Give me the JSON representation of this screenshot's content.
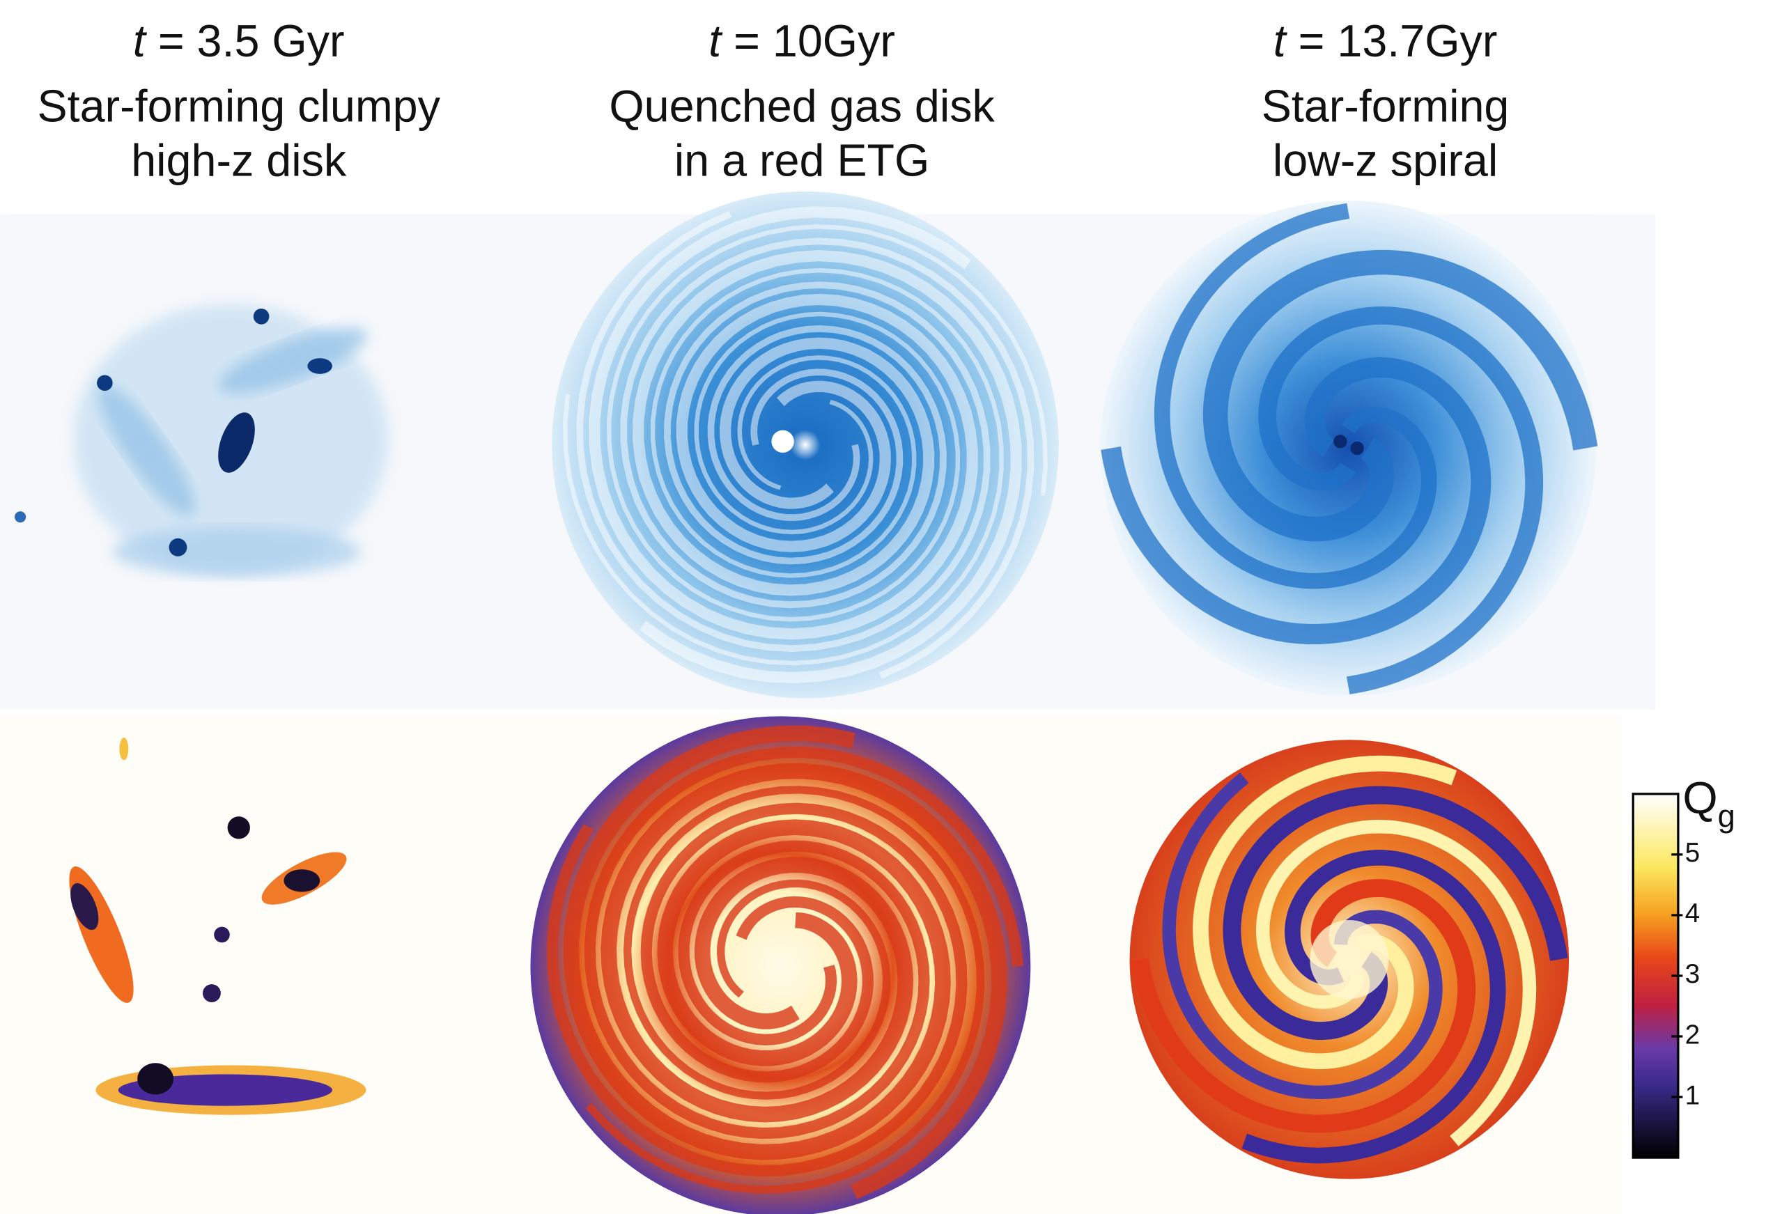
{
  "panels": [
    {
      "time_symbol": "t",
      "time_text": "= 3.5 Gyr",
      "description": [
        "Star-forming clumpy",
        "high-z disk"
      ]
    },
    {
      "time_symbol": "t",
      "time_text": "= 10Gyr",
      "description": [
        "Quenched gas disk",
        "in a red ETG"
      ]
    },
    {
      "time_symbol": "t",
      "time_text": "= 13.7Gyr",
      "description": [
        "Star-forming",
        "low-z spiral"
      ]
    }
  ],
  "colorbar": {
    "label": "Q",
    "label_subscript": "g",
    "lim": [
      0,
      6
    ],
    "ticks": [
      1,
      2,
      3,
      4,
      5
    ]
  }
}
